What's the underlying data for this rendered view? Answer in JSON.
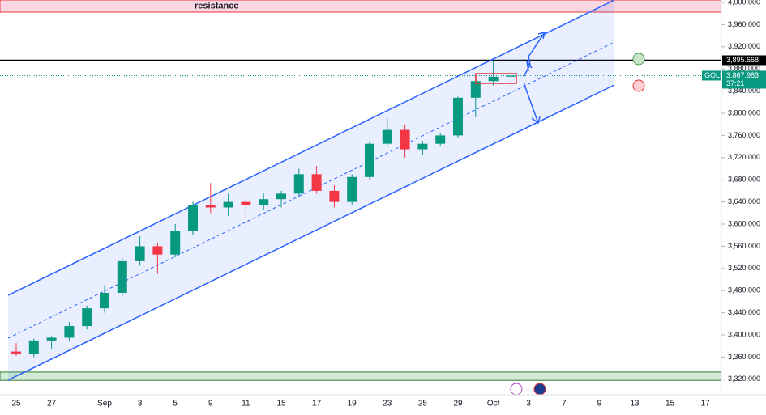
{
  "chart_data": {
    "type": "candlestick",
    "symbol": "GOLD",
    "categories": [
      "25",
      null,
      "27",
      null,
      null,
      "Sep",
      null,
      "3",
      null,
      "5",
      null,
      "9",
      null,
      "11",
      null,
      "15",
      null,
      "17",
      null,
      "19",
      null,
      "23",
      null,
      "25",
      null,
      "29",
      null,
      "Oct",
      null,
      "3",
      null,
      "7",
      null,
      "9",
      null,
      "13",
      null,
      "15",
      null,
      "17"
    ],
    "open": [
      3370,
      3366,
      3390,
      3395,
      3416,
      3448,
      3476,
      3533,
      3560,
      3545,
      3587,
      3635,
      3630,
      3640,
      3635,
      3645,
      3655,
      3690,
      3660,
      3640,
      3685,
      3745,
      3770,
      3735,
      3745,
      3760,
      3828,
      3858,
      3866,
      null,
      null,
      null,
      null,
      null,
      null,
      null,
      null,
      null,
      null,
      null
    ],
    "high": [
      3385,
      3393,
      3398,
      3423,
      3453,
      3490,
      3540,
      3578,
      3565,
      3600,
      3640,
      3674,
      3655,
      3650,
      3655,
      3660,
      3700,
      3705,
      3670,
      3690,
      3750,
      3792,
      3780,
      3750,
      3765,
      3830,
      3870,
      3895,
      3880,
      null,
      null,
      null,
      null,
      null,
      null,
      null,
      null,
      null,
      null,
      null
    ],
    "low": [
      3362,
      3360,
      3375,
      3390,
      3410,
      3440,
      3470,
      3525,
      3510,
      3540,
      3580,
      3620,
      3615,
      3610,
      3625,
      3630,
      3650,
      3655,
      3630,
      3635,
      3680,
      3740,
      3720,
      3725,
      3740,
      3755,
      3793,
      3850,
      3852,
      null,
      null,
      null,
      null,
      null,
      null,
      null,
      null,
      null,
      null,
      null
    ],
    "close": [
      3366,
      3390,
      3395,
      3416,
      3448,
      3476,
      3533,
      3560,
      3545,
      3587,
      3635,
      3630,
      3640,
      3635,
      3645,
      3655,
      3690,
      3660,
      3640,
      3685,
      3745,
      3770,
      3735,
      3745,
      3760,
      3828,
      3858,
      3866,
      3868,
      null,
      null,
      null,
      null,
      null,
      null,
      null,
      null,
      null,
      null,
      null
    ],
    "up_color": "#089981",
    "down_color": "#f23645",
    "ylim": [
      3292,
      4004.4
    ],
    "yticks": [
      {
        "value": 3320,
        "label": "3,320.000"
      },
      {
        "value": 3360,
        "label": "3,360.000"
      },
      {
        "value": 3400,
        "label": "3,400.000"
      },
      {
        "value": 3440,
        "label": "3,440.000"
      },
      {
        "value": 3480,
        "label": "3,480.000"
      },
      {
        "value": 3520,
        "label": "3,520.000"
      },
      {
        "value": 3560,
        "label": "3,560.000"
      },
      {
        "value": 3600,
        "label": "3,600.000"
      },
      {
        "value": 3640,
        "label": "3,640.000"
      },
      {
        "value": 3680,
        "label": "3,680.000"
      },
      {
        "value": 3720,
        "label": "3,720.000"
      },
      {
        "value": 3760,
        "label": "3,760.000"
      },
      {
        "value": 3800,
        "label": "3,800.000"
      },
      {
        "value": 3840,
        "label": "3,840.000"
      },
      {
        "value": 3880,
        "label": "3,880.000"
      },
      {
        "value": 3920,
        "label": "3,920.000"
      },
      {
        "value": 3960,
        "label": "3,960.000"
      },
      {
        "value": 4000,
        "label": "4,000.000"
      }
    ],
    "channel": {
      "x": [
        -0.46,
        33.85
      ],
      "upper": [
        3471.6,
        4004.4
      ],
      "middle": [
        3394.2,
        3928.5
      ],
      "lower": [
        3318.3,
        3851.1
      ],
      "color": "#2962ff"
    },
    "resistance": {
      "label": "resistance",
      "range": [
        3982.5,
        4004.4
      ]
    },
    "support": {
      "range": [
        3318,
        3333
      ]
    },
    "level": {
      "value": 3895.668,
      "label": "3,895.668"
    },
    "last_price": {
      "value": 3867.983,
      "label": "3,867.983",
      "countdown": "37:21"
    }
  }
}
